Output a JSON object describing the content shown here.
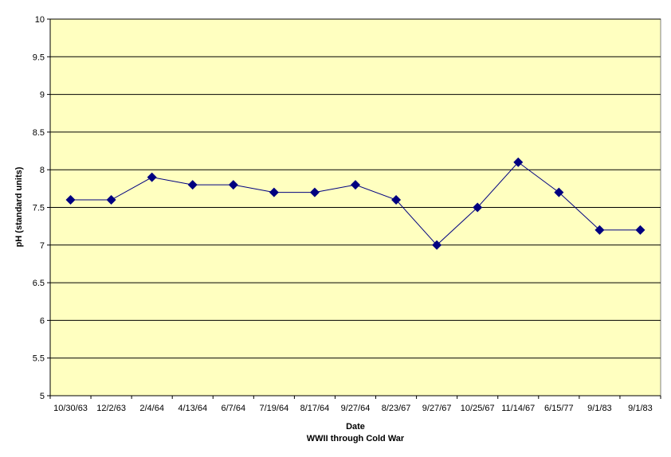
{
  "chart_data": {
    "type": "line",
    "categories": [
      "10/30/63",
      "12/2/63",
      "2/4/64",
      "4/13/64",
      "6/7/64",
      "7/19/64",
      "8/17/64",
      "9/27/64",
      "8/23/67",
      "9/27/67",
      "10/25/67",
      "11/14/67",
      "6/15/77",
      "9/1/83",
      "9/1/83"
    ],
    "series": [
      {
        "values": [
          7.6,
          7.6,
          7.9,
          7.8,
          7.8,
          7.7,
          7.7,
          7.8,
          7.6,
          7.0,
          7.5,
          8.1,
          7.7,
          7.2,
          7.2
        ]
      }
    ],
    "xlabel": "Date",
    "xsublabel": "WWII through Cold War",
    "ylabel": "pH (standard units)",
    "ylim": [
      5,
      10
    ],
    "yticks": [
      5,
      5.5,
      6,
      6.5,
      7,
      7.5,
      8,
      8.5,
      9,
      9.5,
      10
    ],
    "ytick_labels": [
      "5",
      "5.5",
      "6",
      "6.5",
      "7",
      "7.5",
      "8",
      "8.5",
      "9",
      "9.5",
      "10"
    ],
    "grid": true,
    "legend": "none",
    "colors": {
      "plot_background": "#FFFFC0",
      "series": "#000080",
      "gridline": "#000000"
    },
    "marker": "diamond"
  }
}
